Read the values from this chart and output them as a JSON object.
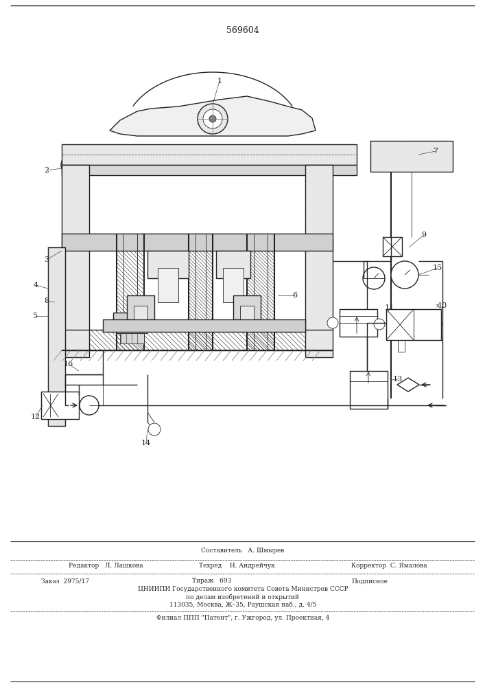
{
  "patent_number": "569604",
  "bg_color": "#ffffff",
  "line_color": "#222222",
  "fig_width": 7.07,
  "fig_height": 10.0,
  "footer_line1_center_top": "Составитель   А. Шмырев",
  "footer_line1_left": "Редактор   Л. Лашкова",
  "footer_line1_center": "Техред    Н. Андрейчук",
  "footer_line1_right": "Корректор  С. Ямалова",
  "footer_line2_left": "Заказ  2975/17",
  "footer_line2_center": "Тираж   693",
  "footer_line2_right": "Подписное",
  "footer_line3": "ЦНИИПИ Государственного комитета Совета Министров СССР",
  "footer_line4": "по делам изобретений и открытий",
  "footer_line5": "113035, Москва, Ж–35, Раушская наб., д. 4/5",
  "footer_line6": "Филиал ППП \"Патент\", г. Ужгород, ул. Проектная, 4"
}
